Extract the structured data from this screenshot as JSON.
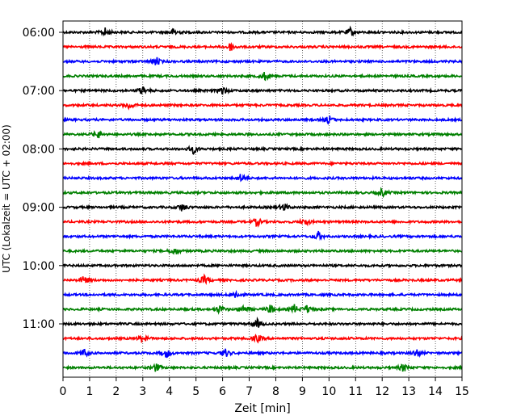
{
  "chart_data": {
    "type": "line",
    "title": "",
    "xlabel": "Zeit  [min]",
    "ylabel": "UTC (Lokalzeit = UTC + 02:00)",
    "xlim": [
      0,
      15
    ],
    "x_ticks": [
      "0",
      "1",
      "2",
      "3",
      "4",
      "5",
      "6",
      "7",
      "8",
      "9",
      "10",
      "11",
      "12",
      "13",
      "14",
      "15"
    ],
    "y_ticks": [
      "06:00",
      "07:00",
      "08:00",
      "09:00",
      "10:00",
      "11:00"
    ],
    "grid": "vertical dotted",
    "trace_interval_minutes": 15,
    "traces": [
      {
        "start": "06:00",
        "color": "#000000",
        "events": [
          1.6,
          4.2,
          10.8
        ]
      },
      {
        "start": "06:15",
        "color": "#ff0000",
        "events": [
          6.3
        ]
      },
      {
        "start": "06:30",
        "color": "#0000ff",
        "events": [
          3.5
        ]
      },
      {
        "start": "06:45",
        "color": "#008000",
        "events": [
          7.6
        ]
      },
      {
        "start": "07:00",
        "color": "#000000",
        "events": [
          3.0,
          6.0
        ]
      },
      {
        "start": "07:15",
        "color": "#ff0000",
        "events": [
          2.5
        ]
      },
      {
        "start": "07:30",
        "color": "#0000ff",
        "events": [
          10.0
        ]
      },
      {
        "start": "07:45",
        "color": "#008000",
        "events": [
          1.3
        ]
      },
      {
        "start": "08:00",
        "color": "#000000",
        "events": [
          4.9
        ]
      },
      {
        "start": "08:15",
        "color": "#ff0000",
        "events": []
      },
      {
        "start": "08:30",
        "color": "#0000ff",
        "events": [
          6.7
        ]
      },
      {
        "start": "08:45",
        "color": "#008000",
        "events": [
          12.0
        ]
      },
      {
        "start": "09:00",
        "color": "#000000",
        "events": [
          4.5,
          8.3
        ]
      },
      {
        "start": "09:15",
        "color": "#ff0000",
        "events": [
          7.3,
          9.1
        ]
      },
      {
        "start": "09:30",
        "color": "#0000ff",
        "events": [
          9.6
        ]
      },
      {
        "start": "09:45",
        "color": "#008000",
        "events": [
          4.2
        ]
      },
      {
        "start": "10:00",
        "color": "#000000",
        "events": []
      },
      {
        "start": "10:15",
        "color": "#ff0000",
        "events": [
          0.8,
          5.3
        ]
      },
      {
        "start": "10:30",
        "color": "#0000ff",
        "events": [
          6.5
        ]
      },
      {
        "start": "10:45",
        "color": "#008000",
        "events": [
          5.9,
          6.8,
          7.8,
          8.7,
          9.2
        ]
      },
      {
        "start": "11:00",
        "color": "#000000",
        "events": [
          7.3
        ]
      },
      {
        "start": "11:15",
        "color": "#ff0000",
        "events": [
          3.0,
          7.3
        ]
      },
      {
        "start": "11:30",
        "color": "#0000ff",
        "events": [
          0.8,
          3.9,
          6.1,
          13.3
        ]
      },
      {
        "start": "11:45",
        "color": "#008000",
        "events": [
          3.5,
          12.8
        ]
      }
    ]
  }
}
